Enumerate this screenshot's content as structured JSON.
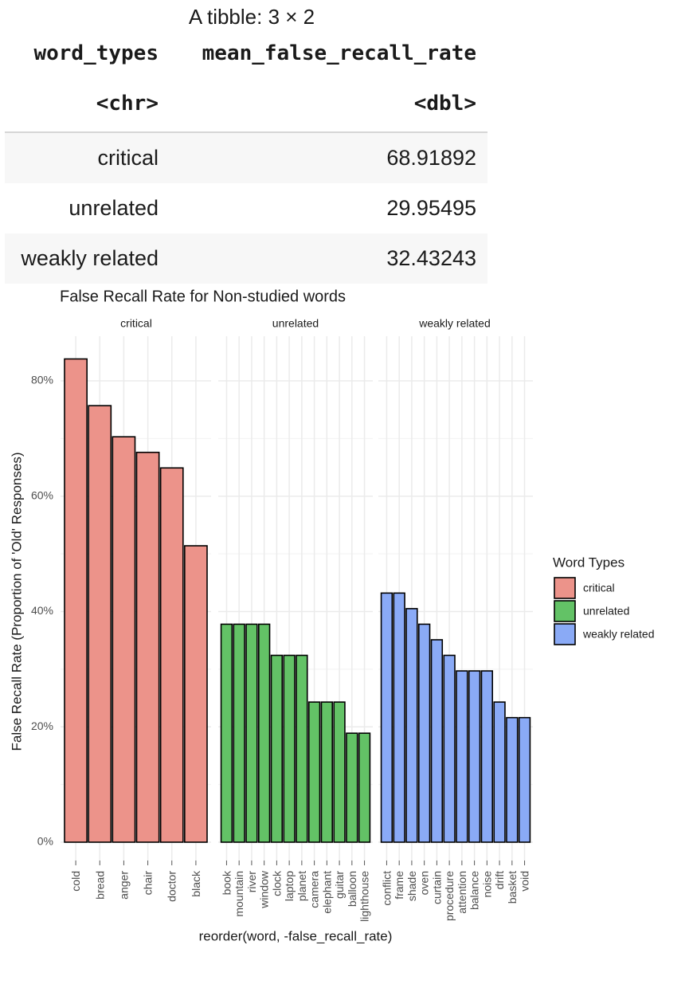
{
  "table": {
    "caption": "A tibble: 3 × 2",
    "columns": [
      {
        "name": "word_types",
        "type": "<chr>"
      },
      {
        "name": "mean_false_recall_rate",
        "type": "<dbl>"
      }
    ],
    "rows": [
      {
        "word_types": "critical",
        "mean_false_recall_rate": "68.91892"
      },
      {
        "word_types": "unrelated",
        "mean_false_recall_rate": "29.95495"
      },
      {
        "word_types": "weakly related",
        "mean_false_recall_rate": "32.43243"
      }
    ]
  },
  "chart_data": {
    "type": "bar",
    "title": "False Recall Rate for Non-studied words",
    "xlabel": "reorder(word, -false_recall_rate)",
    "ylabel": "False Recall Rate (Proportion of 'Old' Responses)",
    "ylim": [
      0,
      87
    ],
    "yticks": [
      "0%",
      "20%",
      "40%",
      "60%",
      "80%"
    ],
    "grid": true,
    "legend": {
      "title": "Word Types",
      "placement": "right"
    },
    "facets": [
      {
        "name": "critical",
        "color": "#ec938a",
        "categories": [
          "cold",
          "bread",
          "anger",
          "chair",
          "doctor",
          "black"
        ],
        "values": [
          83.8,
          75.7,
          70.3,
          67.6,
          64.9,
          51.4
        ]
      },
      {
        "name": "unrelated",
        "color": "#63c266",
        "categories": [
          "book",
          "mountain",
          "river",
          "window",
          "clock",
          "laptop",
          "planet",
          "camera",
          "elephant",
          "guitar",
          "balloon",
          "lighthouse"
        ],
        "values": [
          37.8,
          37.8,
          37.8,
          37.8,
          32.4,
          32.4,
          32.4,
          24.3,
          24.3,
          24.3,
          18.9,
          18.9
        ]
      },
      {
        "name": "weakly related",
        "color": "#8aaaf6",
        "categories": [
          "conflict",
          "frame",
          "shade",
          "oven",
          "curtain",
          "procedure",
          "attention",
          "balance",
          "noise",
          "drift",
          "basket",
          "void"
        ],
        "values": [
          43.2,
          43.2,
          40.5,
          37.8,
          35.1,
          32.4,
          29.7,
          29.7,
          29.7,
          24.3,
          21.6,
          21.6
        ]
      }
    ]
  }
}
